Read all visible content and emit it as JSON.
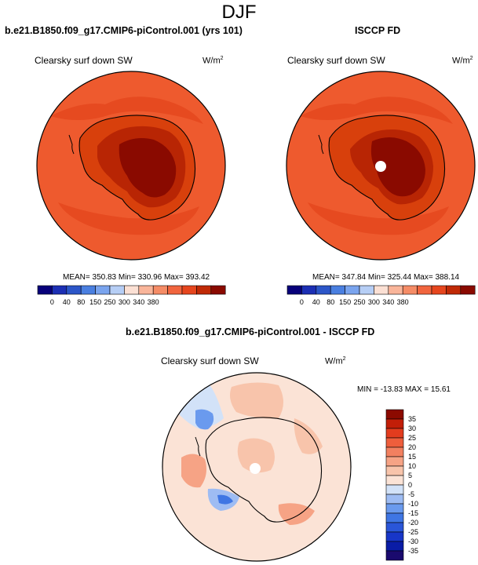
{
  "figure": {
    "season": "DJF"
  },
  "palettes": {
    "abs_colors": [
      "#08007a",
      "#1c2fb4",
      "#2c56c8",
      "#4a7fe0",
      "#7aa4ee",
      "#b6cef5",
      "#fbe0d4",
      "#f9b59a",
      "#f58c66",
      "#f1653e",
      "#e6461e",
      "#c02a06",
      "#8a0a00"
    ],
    "diff_colors": [
      "#1a0a6e",
      "#0a1ca6",
      "#1836c8",
      "#2a56d8",
      "#3f76e4",
      "#6a9aee",
      "#9ebcf3",
      "#d2e2f8",
      "#fbe3d6",
      "#f8c4ab",
      "#f6a385",
      "#f28060",
      "#ee5e3c",
      "#e33c1e",
      "#c21e08",
      "#8c0a00"
    ]
  },
  "panels": [
    {
      "title": "b.e21.B1850.f09_g17.CMIP6-piControl.001 (yrs 101)",
      "variable": "Clearsky surf down SW",
      "units": "W/m",
      "units_exp": "2",
      "stats": "MEAN= 350.83  Min= 330.96  Max= 393.42",
      "colorbar_labels": [
        "0",
        "40",
        "80",
        "150",
        "250",
        "300",
        "340",
        "380"
      ]
    },
    {
      "title": "ISCCP FD",
      "variable": "Clearsky surf down SW",
      "units": "W/m",
      "units_exp": "2",
      "stats": "MEAN= 347.84  Min= 325.44  Max= 388.14",
      "colorbar_labels": [
        "0",
        "40",
        "80",
        "150",
        "250",
        "300",
        "340",
        "380"
      ]
    }
  ],
  "diff_panel": {
    "title": "b.e21.B1850.f09_g17.CMIP6-piControl.001 - ISCCP FD",
    "variable": "Clearsky surf down SW",
    "units": "W/m",
    "units_exp": "2",
    "stats": "MIN = -13.83 MAX =  15.61",
    "colorbar_labels": [
      "35",
      "30",
      "25",
      "20",
      "15",
      "10",
      "5",
      "0",
      "-5",
      "-10",
      "-15",
      "-20",
      "-25",
      "-30",
      "-35"
    ]
  }
}
